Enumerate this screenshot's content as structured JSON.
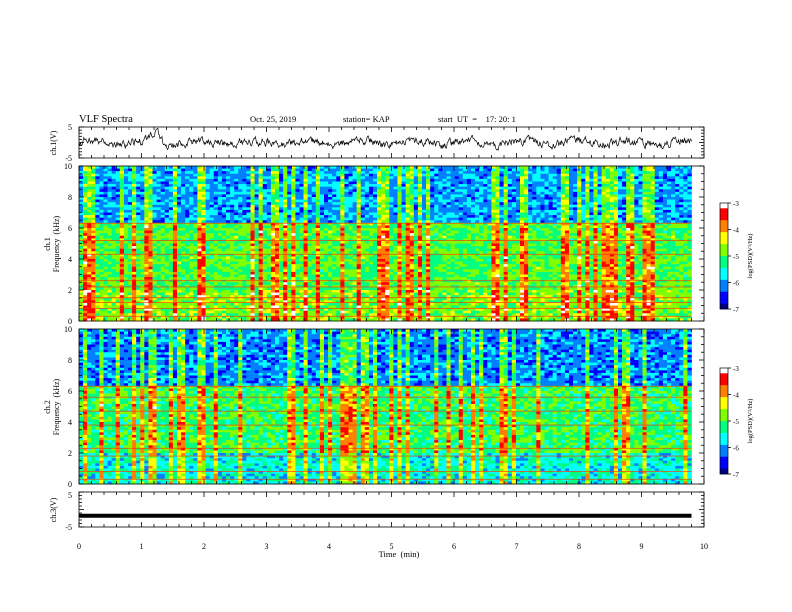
{
  "header": {
    "title": "VLF Spectra",
    "date": "Oct. 25, 2019",
    "station": "station= KAP",
    "start_ut": "start  UT  =    17: 20: 1"
  },
  "chart_data": [
    {
      "id": "ch1-waveform",
      "type": "line",
      "ylabel": "ch.1(V)",
      "ylim": [
        -5,
        5
      ],
      "y_tick_labels": [
        "5",
        "-5"
      ],
      "xlim": [
        0,
        10
      ],
      "series_note": "noisy waveform, baseline near 0 V, brief positive excursion near t = 1.2 min"
    },
    {
      "id": "ch1-spectrogram",
      "type": "heatmap",
      "ylabel_line1": "ch.1",
      "ylabel_line2": "Frequency  (kHz)",
      "ylim": [
        0,
        10
      ],
      "y_tick_labels": [
        "0",
        "2",
        "4",
        "6",
        "8",
        "10"
      ],
      "xlim": [
        0,
        9.8
      ],
      "colorbar": {
        "label": "log(PSD)(V²/Hz)",
        "range": [
          -7,
          -3
        ],
        "tick_labels": [
          "-3",
          "-4",
          "-5",
          "-6",
          "-7"
        ]
      },
      "features": {
        "high_band_khz": [
          6.4,
          9.9
        ],
        "high_band_level": -6.0,
        "mid_level": -5.0,
        "low_band_level": -4.8,
        "horizontal_lines_khz": [
          0.3,
          0.8,
          1.2,
          1.5,
          2.2,
          2.6,
          4.3,
          5.2,
          6.3
        ]
      }
    },
    {
      "id": "ch2-spectrogram",
      "type": "heatmap",
      "ylabel_line1": "ch.2",
      "ylabel_line2": "Frequency  (kHz)",
      "ylim": [
        0,
        10
      ],
      "y_tick_labels": [
        "0",
        "2",
        "4",
        "6",
        "8",
        "10"
      ],
      "xlim": [
        0,
        9.8
      ],
      "colorbar": {
        "label": "log(PSD)(V²/Hz)",
        "range": [
          -7,
          -3
        ],
        "tick_labels": [
          "-3",
          "-4",
          "-5",
          "-6",
          "-7"
        ]
      },
      "features": {
        "high_band_khz": [
          6.3,
          10
        ],
        "high_band_level": -6.1,
        "mid_level": -5.1,
        "low_band_level": -5.6,
        "horizontal_lines_khz": [
          0.3,
          0.8,
          1.8,
          2.3,
          3.8,
          4.7,
          5.6,
          6.3
        ]
      }
    },
    {
      "id": "ch3-waveform",
      "type": "line",
      "ylabel": "ch.3(V)",
      "ylim": [
        -5,
        5
      ],
      "y_tick_labels": [
        "5",
        "-5"
      ],
      "xlim": [
        0,
        10
      ],
      "series": [
        {
          "x": [
            0,
            9.8
          ],
          "y": [
            -1.8,
            -1.8
          ]
        }
      ]
    }
  ],
  "x_axis": {
    "label": "Time  (min)",
    "range": [
      0,
      10
    ],
    "tick_labels": [
      "0",
      "1",
      "2",
      "3",
      "4",
      "5",
      "6",
      "7",
      "8",
      "9",
      "10"
    ]
  },
  "colors": {
    "colormap": [
      "#000080",
      "#0000ff",
      "#0080ff",
      "#00ffff",
      "#00ff80",
      "#80ff00",
      "#ffff00",
      "#ff8000",
      "#ff0000",
      "#ffffff"
    ]
  }
}
